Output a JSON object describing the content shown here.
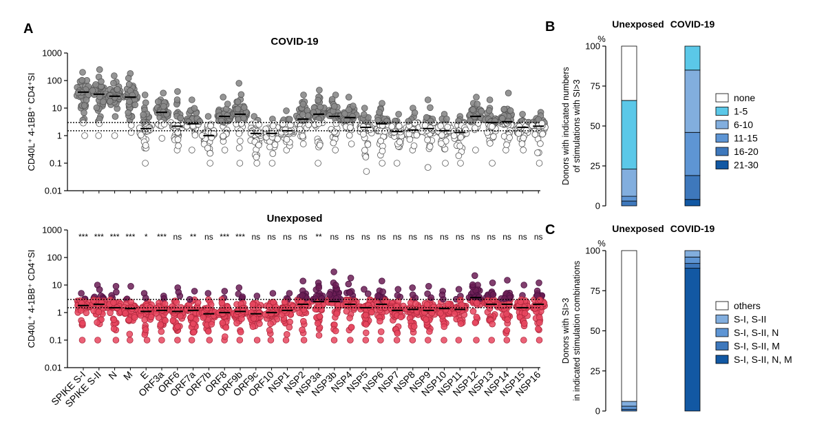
{
  "panel_labels": {
    "a": "A",
    "b": "B",
    "c": "C"
  },
  "colors": {
    "covid_high": "#8a8a8a",
    "covid_low": "#ffffff",
    "unexp_high": "#6b1d55",
    "unexp_low": "#e8475f",
    "label_gray": "#8c8c8c"
  },
  "chart_data": [
    {
      "type": "scatter",
      "title": "COVID-19",
      "ylabel": "CD40L⁺ 4-1BB⁺ CD4⁺SI",
      "yscale": "log",
      "ylim": [
        0.01,
        1000
      ],
      "yticks": [
        "0.01",
        "0.1",
        "1",
        "10",
        "100",
        "1000"
      ],
      "threshold_lines": [
        3,
        1.5
      ],
      "categories": [
        "SPIKE S-I",
        "SPIKE S-II",
        "N",
        "M",
        "E",
        "ORF3a",
        "ORF6",
        "ORF7a",
        "ORF7b",
        "ORF8",
        "ORF9b",
        "ORF9c",
        "ORF10",
        "NSP1",
        "NSP2",
        "NSP3a",
        "NSP3b",
        "NSP4",
        "NSP5",
        "NSP6",
        "NSP7",
        "NSP8",
        "NSP9",
        "NSP10",
        "NSP11",
        "NSP12",
        "NSP13",
        "NSP14",
        "NSP15",
        "NSP16"
      ],
      "gray_labels": [
        "ORF3a",
        "ORF6",
        "ORF7a",
        "ORF7b",
        "ORF8",
        "ORF9b",
        "ORF9c",
        "ORF10"
      ],
      "medians": [
        38,
        32,
        27,
        25,
        1.8,
        7,
        2.2,
        2.7,
        1,
        5,
        6,
        1.2,
        1.2,
        1.5,
        4,
        6,
        5,
        4.5,
        2,
        2.7,
        1.4,
        1.6,
        1.8,
        1.5,
        1.3,
        5,
        3,
        3.2,
        2,
        2.2
      ],
      "max_values": [
        200,
        250,
        150,
        180,
        30,
        35,
        40,
        20,
        5,
        25,
        80,
        5,
        4,
        8,
        30,
        45,
        30,
        25,
        10,
        15,
        6,
        10,
        20,
        6,
        5,
        25,
        20,
        35,
        6,
        7
      ],
      "min_values": [
        1,
        1,
        1,
        1.3,
        0.1,
        0.8,
        0.3,
        0.3,
        0.1,
        0.3,
        0.1,
        0.1,
        0.1,
        0.3,
        0.5,
        0.1,
        0.3,
        0.5,
        0.05,
        0.1,
        0.1,
        0.3,
        0.07,
        0.1,
        0.1,
        0.3,
        0.1,
        0.3,
        0.3,
        0.1
      ]
    },
    {
      "type": "scatter",
      "title": "Unexposed",
      "ylabel": "CD40L⁺ 4-1BB⁺ CD4⁺SI",
      "yscale": "log",
      "ylim": [
        0.01,
        1000
      ],
      "yticks": [
        "0.01",
        "0.1",
        "1",
        "10",
        "100",
        "1000"
      ],
      "threshold_lines": [
        3,
        1.5
      ],
      "categories": [
        "SPIKE S-I",
        "SPIKE S-II",
        "N",
        "M",
        "E",
        "ORF3a",
        "ORF6",
        "ORF7a",
        "ORF7b",
        "ORF8",
        "ORF9b",
        "ORF9c",
        "ORF10",
        "NSP1",
        "NSP2",
        "NSP3a",
        "NSP3b",
        "NSP4",
        "NSP5",
        "NSP6",
        "NSP7",
        "NSP8",
        "NSP9",
        "NSP10",
        "NSP11",
        "NSP12",
        "NSP13",
        "NSP14",
        "NSP15",
        "NSP16"
      ],
      "significance": [
        "***",
        "***",
        "***",
        "***",
        "*",
        "***",
        "ns",
        "**",
        "ns",
        "***",
        "***",
        "ns",
        "ns",
        "ns",
        "ns",
        "**",
        "ns",
        "ns",
        "ns",
        "ns",
        "ns",
        "ns",
        "ns",
        "ns",
        "ns",
        "ns",
        "ns",
        "ns",
        "ns",
        "ns"
      ],
      "medians": [
        1.8,
        2,
        1.5,
        1.4,
        1.1,
        1.2,
        1.1,
        1.2,
        0.9,
        1,
        1.1,
        0.9,
        1,
        1.2,
        2,
        2.5,
        2.5,
        2,
        1.5,
        2,
        1.2,
        1.3,
        1.2,
        1.4,
        1.3,
        3.5,
        2,
        2,
        1.5,
        2
      ],
      "max_values": [
        5,
        10,
        9,
        9,
        5,
        4,
        8,
        6,
        5,
        6,
        8,
        4,
        5,
        5,
        14,
        12,
        30,
        18,
        7,
        14,
        7,
        8,
        9,
        6,
        7,
        22,
        12,
        15,
        10,
        12
      ],
      "min_values": [
        0.1,
        0.1,
        0.1,
        0.1,
        0.1,
        0.1,
        0.1,
        0.1,
        0.1,
        0.1,
        0.1,
        0.1,
        0.1,
        0.1,
        0.1,
        0.15,
        0.1,
        0.1,
        0.1,
        0.1,
        0.1,
        0.1,
        0.1,
        0.1,
        0.1,
        0.1,
        0.1,
        0.1,
        0.1,
        0.1
      ]
    },
    {
      "type": "bar",
      "stacked": true,
      "ylabel_lines": [
        "Donors with indicated numbers",
        "of stimulations with SI>3"
      ],
      "yunit": "%",
      "yticks": [
        "0",
        "25",
        "50",
        "75",
        "100"
      ],
      "ylim": [
        0,
        100
      ],
      "categories": [
        "Unexposed",
        "COVID-19"
      ],
      "legend": [
        "none",
        "1-5",
        "6-10",
        "11-15",
        "16-20",
        "21-30"
      ],
      "legend_colors": [
        "#ffffff",
        "#5bc8e8",
        "#82aede",
        "#5e95d4",
        "#3e78bc",
        "#1258a3"
      ],
      "series": [
        {
          "name": "21-30",
          "values": [
            0,
            4
          ]
        },
        {
          "name": "16-20",
          "values": [
            3,
            15
          ]
        },
        {
          "name": "11-15",
          "values": [
            3,
            27
          ]
        },
        {
          "name": "6-10",
          "values": [
            17,
            39
          ]
        },
        {
          "name": "1-5",
          "values": [
            43,
            15
          ]
        },
        {
          "name": "none",
          "values": [
            34,
            0
          ]
        }
      ]
    },
    {
      "type": "bar",
      "stacked": true,
      "ylabel_lines": [
        "Donors with SI>3",
        "in indicated stimulation combinations"
      ],
      "yunit": "%",
      "yticks": [
        "0",
        "25",
        "50",
        "75",
        "100"
      ],
      "ylim": [
        0,
        100
      ],
      "categories": [
        "Unexposed",
        "COVID-19"
      ],
      "legend": [
        "others",
        "S-I, S-II",
        "S-I, S-II, N",
        "S-I, S-II, M",
        "S-I, S-II, N, M"
      ],
      "legend_colors": [
        "#ffffff",
        "#82aede",
        "#5e95d4",
        "#3e78bc",
        "#1258a3"
      ],
      "series": [
        {
          "name": "S-I, S-II, N, M",
          "values": [
            0,
            89
          ]
        },
        {
          "name": "S-I, S-II, M",
          "values": [
            1,
            3
          ]
        },
        {
          "name": "S-I, S-II, N",
          "values": [
            2,
            4
          ]
        },
        {
          "name": "S-I, S-II",
          "values": [
            3,
            4
          ]
        },
        {
          "name": "others",
          "values": [
            94,
            0
          ]
        }
      ]
    }
  ]
}
